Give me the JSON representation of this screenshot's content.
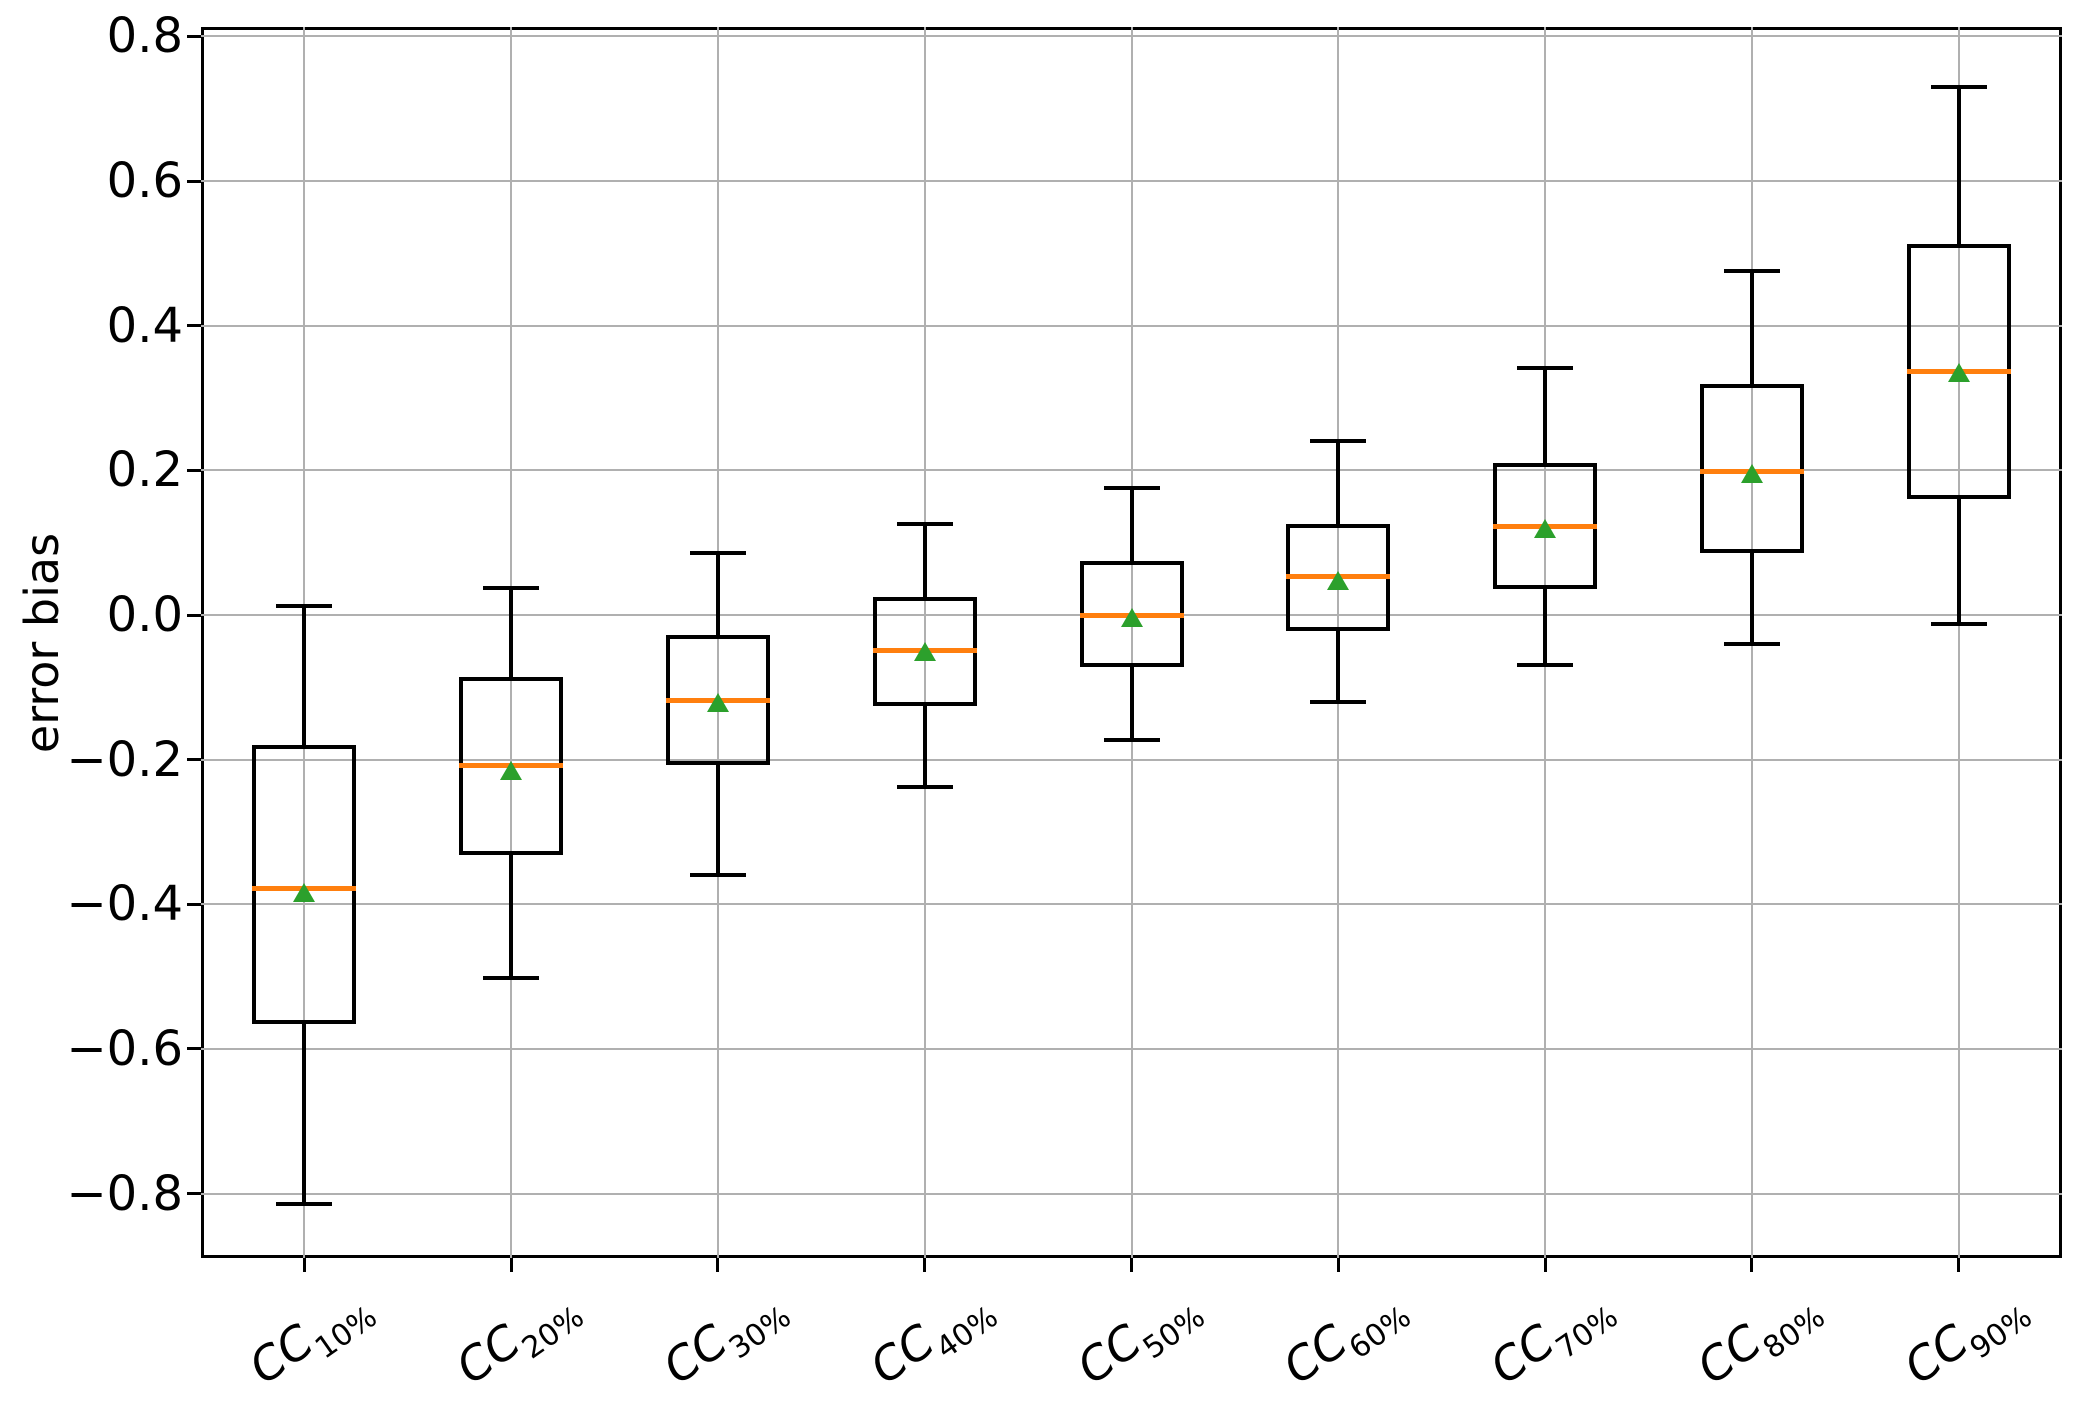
{
  "chart_data": {
    "type": "boxplot",
    "title": "",
    "xlabel": "",
    "ylabel": "error bias",
    "ylim": [
      -0.889,
      0.813
    ],
    "grid": true,
    "yticks": [
      {
        "value": 0.8,
        "label": "0.8"
      },
      {
        "value": 0.6,
        "label": "0.6"
      },
      {
        "value": 0.4,
        "label": "0.4"
      },
      {
        "value": 0.2,
        "label": "0.2"
      },
      {
        "value": 0.0,
        "label": "0.0"
      },
      {
        "value": -0.2,
        "label": "−0.2"
      },
      {
        "value": -0.4,
        "label": "−0.4"
      },
      {
        "value": -0.6,
        "label": "−0.6"
      },
      {
        "value": -0.8,
        "label": "−0.8"
      }
    ],
    "categories": [
      {
        "prefix": "CC",
        "subscript": "10%",
        "label": "CC10%"
      },
      {
        "prefix": "CC",
        "subscript": "20%",
        "label": "CC20%"
      },
      {
        "prefix": "CC",
        "subscript": "30%",
        "label": "CC30%"
      },
      {
        "prefix": "CC",
        "subscript": "40%",
        "label": "CC40%"
      },
      {
        "prefix": "CC",
        "subscript": "50%",
        "label": "CC50%"
      },
      {
        "prefix": "CC",
        "subscript": "60%",
        "label": "CC60%"
      },
      {
        "prefix": "CC",
        "subscript": "70%",
        "label": "CC70%"
      },
      {
        "prefix": "CC",
        "subscript": "80%",
        "label": "CC80%"
      },
      {
        "prefix": "CC",
        "subscript": "90%",
        "label": "CC90%"
      }
    ],
    "boxes": [
      {
        "label": "CC10%",
        "whislo": -0.815,
        "q1": -0.565,
        "med": -0.378,
        "q3": -0.18,
        "whishi": 0.012,
        "mean": -0.385
      },
      {
        "label": "CC20%",
        "whislo": -0.502,
        "q1": -0.332,
        "med": -0.208,
        "q3": -0.086,
        "whishi": 0.038,
        "mean": -0.215
      },
      {
        "label": "CC30%",
        "whislo": -0.36,
        "q1": -0.208,
        "med": -0.118,
        "q3": -0.028,
        "whishi": 0.086,
        "mean": -0.122
      },
      {
        "label": "CC40%",
        "whislo": -0.238,
        "q1": -0.126,
        "med": -0.049,
        "q3": 0.025,
        "whishi": 0.126,
        "mean": -0.051
      },
      {
        "label": "CC50%",
        "whislo": -0.173,
        "q1": -0.072,
        "med": 0.0,
        "q3": 0.075,
        "whishi": 0.176,
        "mean": -0.004
      },
      {
        "label": "CC60%",
        "whislo": -0.12,
        "q1": -0.022,
        "med": 0.053,
        "q3": 0.126,
        "whishi": 0.241,
        "mean": 0.047
      },
      {
        "label": "CC70%",
        "whislo": -0.069,
        "q1": 0.036,
        "med": 0.122,
        "q3": 0.21,
        "whishi": 0.342,
        "mean": 0.119
      },
      {
        "label": "CC80%",
        "whislo": -0.04,
        "q1": 0.086,
        "med": 0.199,
        "q3": 0.319,
        "whishi": 0.476,
        "mean": 0.195
      },
      {
        "label": "CC90%",
        "whislo": -0.013,
        "q1": 0.16,
        "med": 0.337,
        "q3": 0.513,
        "whishi": 0.73,
        "mean": 0.334
      }
    ],
    "colors": {
      "median": "#ff7f0e",
      "mean_marker": "#2ca02c",
      "box_edge": "#000000",
      "grid": "#b0b0b0",
      "background": "#ffffff"
    },
    "legend": null
  }
}
